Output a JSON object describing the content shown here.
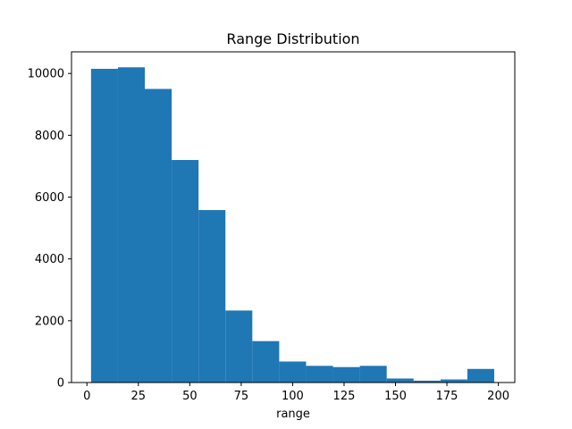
{
  "chart_data": {
    "type": "bar",
    "title": "Range Distribution",
    "xlabel": "range",
    "ylabel": "",
    "xlim": [
      -7.5,
      208
    ],
    "ylim": [
      0,
      10700
    ],
    "x_ticks": [
      0,
      25,
      50,
      75,
      100,
      125,
      150,
      175,
      200
    ],
    "y_ticks": [
      0,
      2000,
      4000,
      6000,
      8000,
      10000
    ],
    "bins": [
      {
        "start": 2,
        "end": 15.07,
        "value": 10150
      },
      {
        "start": 15.07,
        "end": 28.13,
        "value": 10200
      },
      {
        "start": 28.13,
        "end": 41.2,
        "value": 9500
      },
      {
        "start": 41.2,
        "end": 54.27,
        "value": 7200
      },
      {
        "start": 54.27,
        "end": 67.33,
        "value": 5580
      },
      {
        "start": 67.33,
        "end": 80.4,
        "value": 2330
      },
      {
        "start": 80.4,
        "end": 93.47,
        "value": 1340
      },
      {
        "start": 93.47,
        "end": 106.53,
        "value": 680
      },
      {
        "start": 106.53,
        "end": 119.6,
        "value": 540
      },
      {
        "start": 119.6,
        "end": 132.67,
        "value": 500
      },
      {
        "start": 132.67,
        "end": 145.73,
        "value": 540
      },
      {
        "start": 145.73,
        "end": 158.8,
        "value": 130
      },
      {
        "start": 158.8,
        "end": 171.87,
        "value": 60
      },
      {
        "start": 171.87,
        "end": 184.93,
        "value": 100
      },
      {
        "start": 184.93,
        "end": 198,
        "value": 440
      }
    ],
    "bar_color": "#1f77b4",
    "grid": false,
    "legend": "none"
  }
}
